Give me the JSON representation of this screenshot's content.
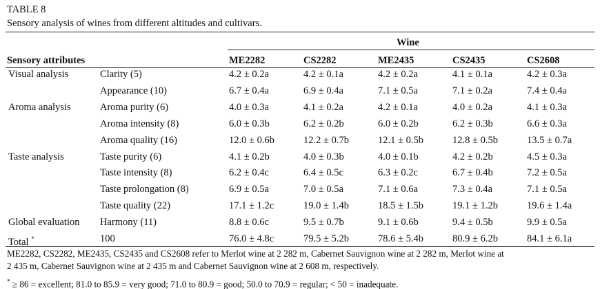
{
  "header": {
    "title": "TABLE 8",
    "subtitle": "Sensory analysis of wines from different altitudes and cultivars."
  },
  "table": {
    "group_header": "Wine",
    "row_header": "Sensory attributes",
    "columns": [
      "ME2282",
      "CS2282",
      "ME2435",
      "CS2435",
      "CS2608"
    ],
    "groups": [
      {
        "name": "Visual analysis",
        "rows": [
          {
            "attribute": "Clarity (5)",
            "values": [
              "4.2 ± 0.2a",
              "4.2 ± 0.1a",
              "4.2 ± 0.2a",
              "4.1 ± 0.1a",
              "4.2 ± 0.3a"
            ]
          },
          {
            "attribute": "Appearance (10)",
            "values": [
              "6.7 ± 0.4a",
              "6.9 ± 0.4a",
              "7.1 ± 0.5a",
              "7.1 ± 0.2a",
              "7.4 ± 0.4a"
            ]
          }
        ]
      },
      {
        "name": "Aroma analysis",
        "rows": [
          {
            "attribute": "Aroma purity (6)",
            "values": [
              "4.0 ± 0.3a",
              "4.1 ± 0.2a",
              "4.2 ± 0.1a",
              "4.0 ± 0.2a",
              "4.1 ± 0.3a"
            ]
          },
          {
            "attribute": "Aroma intensity (8)",
            "values": [
              "6.0 ± 0.3b",
              "6.2 ± 0.2b",
              "6.0 ± 0.2b",
              "6.2 ± 0.3b",
              "6.6 ± 0.3a"
            ]
          },
          {
            "attribute": "Aroma quality (16)",
            "values": [
              "12.0 ± 0.6b",
              "12.2 ± 0.7b",
              "12.1 ± 0.5b",
              "12.8 ± 0.5b",
              "13.5 ± 0.7a"
            ]
          }
        ]
      },
      {
        "name": "Taste analysis",
        "rows": [
          {
            "attribute": "Taste purity (6)",
            "values": [
              "4.1 ± 0.2b",
              "4.0 ± 0.3b",
              "4.0 ± 0.1b",
              "4.2 ± 0.2b",
              "4.5 ± 0.3a"
            ]
          },
          {
            "attribute": "Taste intensity (8)",
            "values": [
              "6.2 ± 0.4c",
              "6.4 ± 0.5c",
              "6.3 ± 0.2c",
              "6.7 ± 0.4b",
              "7.2 ± 0.5a"
            ]
          },
          {
            "attribute": "Taste prolongation (8)",
            "values": [
              "6.9 ± 0.5a",
              "7.0 ± 0.5a",
              "7.1 ± 0.6a",
              "7.3 ± 0.4a",
              "7.1 ± 0.5a"
            ]
          },
          {
            "attribute": "Taste quality (22)",
            "values": [
              "17.1 ± 1.2c",
              "19.0 ± 1.4b",
              "18.5 ± 1.5b",
              "19.1 ± 1.2b",
              "19.6 ± 1.4a"
            ]
          }
        ]
      },
      {
        "name": "Global evaluation",
        "rows": [
          {
            "attribute": "Harmony (11)",
            "values": [
              "8.8 ± 0.6c",
              "9.5 ± 0.7b",
              "9.1 ± 0.6b",
              "9.4 ± 0.5b",
              "9.9 ± 0.5a"
            ]
          }
        ]
      }
    ],
    "total": {
      "label": "Total",
      "mark": "*",
      "reference": "100",
      "values": [
        "76.0 ± 4.8c",
        "79.5 ± 5.2b",
        "78.6 ± 5.4b",
        "80.9 ± 6.2b",
        "84.1 ± 6.1a"
      ]
    }
  },
  "footnotes": {
    "lines": [
      "ME2282, CS2282, ME2435, CS2435 and CS2608 refer to  Merlot wine at 2 282 m, Cabernet Sauvignon wine at 2 282 m, Merlot wine at",
      "2 435 m, Cabernet Sauvignon wine at 2 435 m and Cabernet Sauvignon wine at 2 608 m, respectively."
    ],
    "scale_mark": "*",
    "scale": "≥ 86 = excellent; 81.0 to 85.9 = very good; 71.0 to 80.9 = good; 50.0 to 70.9 = regular; < 50 = inadequate."
  }
}
